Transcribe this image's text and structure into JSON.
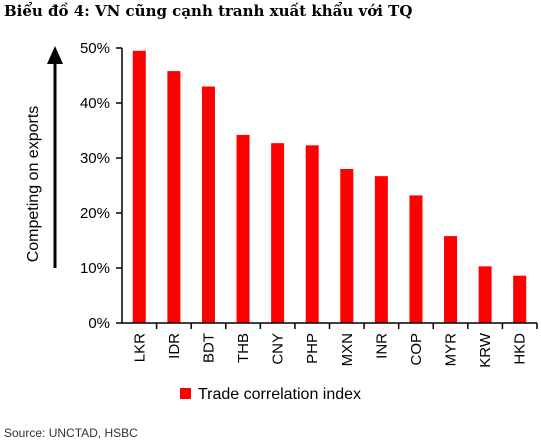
{
  "title": "Biểu đồ 4: VN cũng cạnh tranh xuất khẩu với TQ",
  "source": "Source: UNCTAD, HSBC",
  "chart_data": {
    "type": "bar",
    "categories": [
      "LKR",
      "IDR",
      "BDT",
      "THB",
      "CNY",
      "PHP",
      "MXN",
      "INR",
      "COP",
      "MYR",
      "KRW",
      "HKD"
    ],
    "series": [
      {
        "name": "Trade correlation index",
        "values": [
          49.5,
          45.8,
          43.0,
          34.2,
          32.7,
          32.3,
          28.0,
          26.7,
          23.2,
          15.8,
          10.3,
          8.6
        ]
      }
    ],
    "ylabel": "Competing on exports",
    "ylim": [
      0,
      50
    ],
    "yticks": [
      "0%",
      "10%",
      "20%",
      "30%",
      "40%",
      "50%"
    ],
    "legend_position": "bottom",
    "colors": {
      "bar": "#ff0000",
      "axis": "#000000"
    }
  }
}
